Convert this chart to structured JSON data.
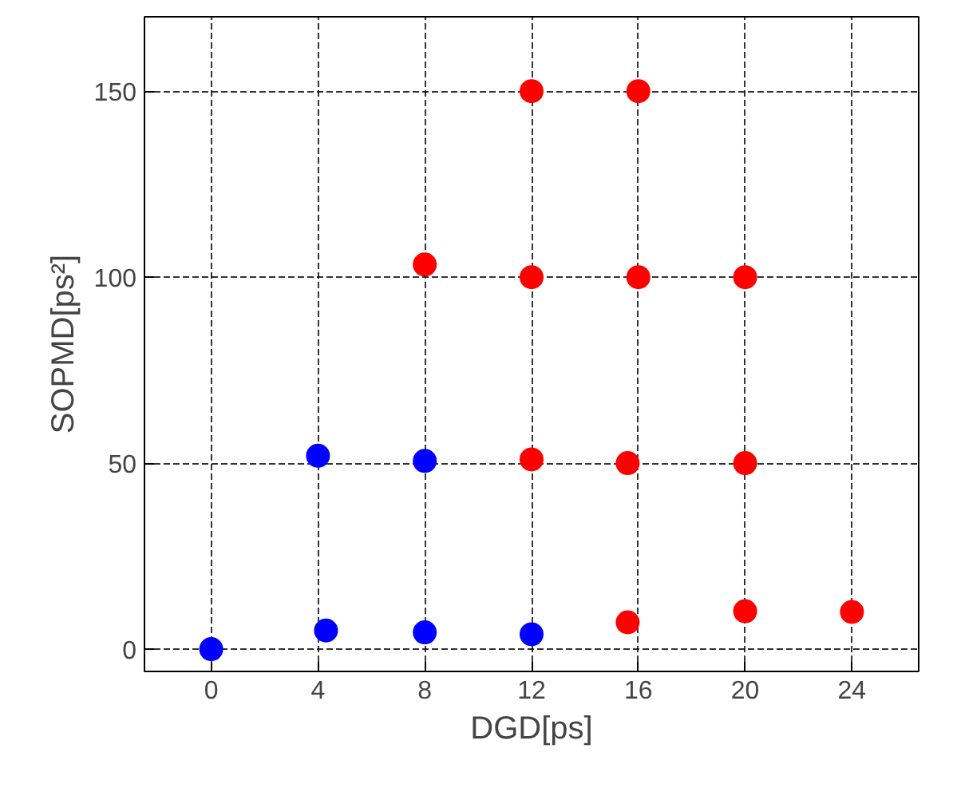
{
  "chart_data": {
    "type": "scatter",
    "xlabel": "DGD[ps]",
    "ylabel": "SOPMD[ps²]",
    "xlim": [
      -2.5,
      26.5
    ],
    "ylim": [
      -6,
      170
    ],
    "xticks": [
      0,
      4,
      8,
      12,
      16,
      20,
      24
    ],
    "yticks": [
      0,
      50,
      100,
      150
    ],
    "grid": true,
    "marker": "circle",
    "series": [
      {
        "color": "#0000ff",
        "x": [
          0,
          4.3,
          8,
          12,
          4,
          8
        ],
        "values": [
          0,
          5,
          4.5,
          4,
          52,
          50.6
        ]
      },
      {
        "color": "#ff0000",
        "x": [
          12,
          16,
          8,
          12,
          16,
          20,
          12,
          15.6,
          20,
          15.6,
          20,
          24
        ],
        "values": [
          150,
          150,
          103.4,
          100,
          100,
          100,
          51,
          50,
          50,
          7.2,
          10.2,
          10
        ]
      }
    ]
  }
}
